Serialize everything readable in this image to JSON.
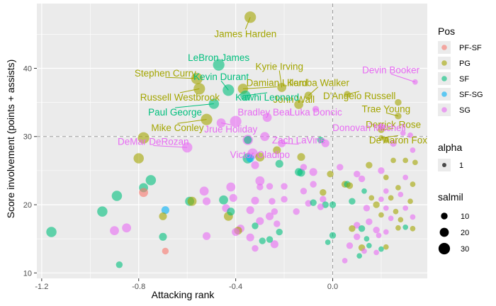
{
  "chart_data": {
    "type": "scatter",
    "xlabel": "Attacking rank",
    "ylabel": "Score involvement (points + assists)",
    "xlim": [
      -1.22,
      0.39
    ],
    "ylim": [
      9.2,
      49.5
    ],
    "x_ticks": [
      -1.2,
      -0.8,
      -0.4,
      0.0
    ],
    "x_tick_labels": [
      "-1.2",
      "-0.8",
      "-0.4",
      "0.0"
    ],
    "y_ticks": [
      10,
      20,
      30,
      40
    ],
    "y_tick_labels": [
      "10",
      "20",
      "30",
      "40"
    ],
    "grid": true,
    "reference_lines": [
      {
        "axis": "x",
        "value": 0,
        "style": "dashed"
      },
      {
        "axis": "y",
        "value": 30,
        "style": "dashed"
      }
    ],
    "colors": {
      "PF-SF": "#F8766D",
      "PG": "#A3A500",
      "SF": "#00BF7D",
      "SF-SG": "#00B0F6",
      "SG": "#E76BF3",
      "background": "#EBEBEB",
      "grid": "#FFFFFF"
    },
    "legend": {
      "placement": "right",
      "pos_title": "Pos",
      "pos_items": [
        "PF-SF",
        "PG",
        "SF",
        "SF-SG",
        "SG"
      ],
      "alpha_title": "alpha",
      "alpha_items": [
        "1"
      ],
      "salmil_title": "salmil",
      "salmil_items": [
        10,
        20,
        30
      ]
    },
    "labeled_points": [
      {
        "name": "James Harden",
        "pos": "PG",
        "x": -0.34,
        "y": 47.5,
        "s": 30,
        "lx": -0.36,
        "ly": 45.1
      },
      {
        "name": "LeBron James",
        "pos": "SF",
        "x": -0.47,
        "y": 40.5,
        "s": 30,
        "lx": -0.47,
        "ly": 41.6
      },
      {
        "name": "Stephen Curry",
        "pos": "PG",
        "x": -0.56,
        "y": 38.5,
        "s": 30,
        "lx": -0.69,
        "ly": 39.3
      },
      {
        "name": "Kevin Durant",
        "pos": "SF",
        "x": -0.43,
        "y": 36.8,
        "s": 30,
        "lx": -0.46,
        "ly": 38.8
      },
      {
        "name": "Kyrie Irving",
        "pos": "PG",
        "x": -0.21,
        "y": 37.2,
        "s": 20,
        "lx": -0.22,
        "ly": 40.3
      },
      {
        "name": "Damian Lillard",
        "pos": "PG",
        "x": -0.37,
        "y": 37.0,
        "s": 25,
        "lx": -0.23,
        "ly": 37.9
      },
      {
        "name": "Kemba Walker",
        "pos": "PG",
        "x": -0.1,
        "y": 36.0,
        "s": 15,
        "lx": -0.06,
        "ly": 37.9
      },
      {
        "name": "John Wall",
        "pos": "PG",
        "x": -0.14,
        "y": 34.7,
        "s": 20,
        "lx": -0.16,
        "ly": 35.5
      },
      {
        "name": "Devin Booker",
        "pos": "SG",
        "x": 0.34,
        "y": 38.0,
        "s": 5,
        "lx": 0.24,
        "ly": 39.8
      },
      {
        "name": "D'Angelo Russell",
        "pos": "PG",
        "x": 0.06,
        "y": 36.2,
        "s": 10,
        "lx": 0.11,
        "ly": 36.0
      },
      {
        "name": "Russell Westbrook",
        "pos": "PG",
        "x": -0.55,
        "y": 37.0,
        "s": 30,
        "lx": -0.63,
        "ly": 35.8
      },
      {
        "name": "Kawhi Leonard",
        "pos": "SF",
        "x": -0.36,
        "y": 36.0,
        "s": 25,
        "lx": -0.27,
        "ly": 35.8
      },
      {
        "name": "Paul George",
        "pos": "SF",
        "x": -0.49,
        "y": 34.8,
        "s": 25,
        "lx": -0.65,
        "ly": 33.6
      },
      {
        "name": "Bradley Beal",
        "pos": "SG",
        "x": -0.27,
        "y": 32.8,
        "s": 20,
        "lx": -0.28,
        "ly": 33.6
      },
      {
        "name": "Luka Doncic",
        "pos": "SG",
        "x": -0.07,
        "y": 34.0,
        "s": 10,
        "lx": -0.07,
        "ly": 33.6
      },
      {
        "name": "Trae Young",
        "pos": "PG",
        "x": 0.27,
        "y": 33.0,
        "s": 10,
        "lx": 0.22,
        "ly": 34.1
      },
      {
        "name": "Mike Conley",
        "pos": "PG",
        "x": -0.52,
        "y": 32.5,
        "s": 30,
        "lx": -0.64,
        "ly": 31.3
      },
      {
        "name": "Jrue Holiday",
        "pos": "SG",
        "x": -0.46,
        "y": 32.0,
        "s": 20,
        "lx": -0.42,
        "ly": 31.1
      },
      {
        "name": "Derrick Rose",
        "pos": "PG",
        "x": 0.2,
        "y": 31.0,
        "s": 10,
        "lx": 0.25,
        "ly": 31.8
      },
      {
        "name": "Donovan Mitchell",
        "pos": "SG",
        "x": 0.2,
        "y": 31.5,
        "s": 10,
        "lx": 0.15,
        "ly": 31.3
      },
      {
        "name": "Zach LaVine",
        "pos": "SG",
        "x": -0.21,
        "y": 29.0,
        "s": 15,
        "lx": -0.14,
        "ly": 29.5
      },
      {
        "name": "DeMar DeRozan",
        "pos": "SG",
        "x": -0.6,
        "y": 28.4,
        "s": 25,
        "lx": -0.74,
        "ly": 29.3
      },
      {
        "name": "De'Aaron Fox",
        "pos": "PG",
        "x": 0.2,
        "y": 29.8,
        "s": 5,
        "lx": 0.27,
        "ly": 29.5
      },
      {
        "name": "Victor Oladipo",
        "pos": "SG",
        "x": -0.33,
        "y": 27.5,
        "s": 25,
        "lx": -0.3,
        "ly": 27.4
      }
    ],
    "points": [
      {
        "pos": "PG",
        "x": -0.78,
        "y": 29.8,
        "s": 30
      },
      {
        "pos": "PG",
        "x": -0.8,
        "y": 26.8,
        "s": 25
      },
      {
        "pos": "SG",
        "x": -0.4,
        "y": 32.2,
        "s": 30
      },
      {
        "pos": "SG",
        "x": -0.35,
        "y": 29.5,
        "s": 25
      },
      {
        "pos": "SG",
        "x": -0.28,
        "y": 30.0,
        "s": 20
      },
      {
        "pos": "SF",
        "x": -0.35,
        "y": 29.5,
        "s": 15
      },
      {
        "pos": "SF",
        "x": -0.35,
        "y": 26.8,
        "s": 25
      },
      {
        "pos": "SF-SG",
        "x": -0.34,
        "y": 26.8,
        "s": 15
      },
      {
        "pos": "PG",
        "x": -0.3,
        "y": 27.0,
        "s": 20
      },
      {
        "pos": "PG",
        "x": -0.23,
        "y": 28.0,
        "s": 15
      },
      {
        "pos": "PG",
        "x": -0.13,
        "y": 27.0,
        "s": 15
      },
      {
        "pos": "SG",
        "x": -0.32,
        "y": 25.8,
        "s": 15
      },
      {
        "pos": "SF",
        "x": -0.13,
        "y": 24.7,
        "s": 15
      },
      {
        "pos": "SG",
        "x": -0.12,
        "y": 25.5,
        "s": 10
      },
      {
        "pos": "SG",
        "x": -0.3,
        "y": 23.5,
        "s": 20
      },
      {
        "pos": "SG",
        "x": -0.08,
        "y": 24.8,
        "s": 15
      },
      {
        "pos": "SF",
        "x": -0.05,
        "y": 29.5,
        "s": 10
      },
      {
        "pos": "SG",
        "x": -0.03,
        "y": 29.0,
        "s": 15
      },
      {
        "pos": "SF",
        "x": -0.75,
        "y": 23.6,
        "s": 25
      },
      {
        "pos": "SF",
        "x": -0.78,
        "y": 22.5,
        "s": 20
      },
      {
        "pos": "SF",
        "x": -0.89,
        "y": 21.3,
        "s": 25
      },
      {
        "pos": "PF-SF",
        "x": -0.78,
        "y": 21.8,
        "s": 20
      },
      {
        "pos": "SF",
        "x": -0.95,
        "y": 19.0,
        "s": 25
      },
      {
        "pos": "SF",
        "x": -1.16,
        "y": 16.0,
        "s": 25
      },
      {
        "pos": "SG",
        "x": -0.9,
        "y": 16.2,
        "s": 20
      },
      {
        "pos": "SG",
        "x": -0.85,
        "y": 16.6,
        "s": 20
      },
      {
        "pos": "SF-SG",
        "x": -0.69,
        "y": 19.2,
        "s": 15
      },
      {
        "pos": "PG",
        "x": -0.7,
        "y": 18.3,
        "s": 15
      },
      {
        "pos": "SF",
        "x": -0.7,
        "y": 15.3,
        "s": 15
      },
      {
        "pos": "PF-SF",
        "x": -0.69,
        "y": 13.2,
        "s": 10
      },
      {
        "pos": "SF",
        "x": -0.88,
        "y": 11.2,
        "s": 10
      },
      {
        "pos": "SF",
        "x": -0.59,
        "y": 20.5,
        "s": 20
      },
      {
        "pos": "PG",
        "x": -0.58,
        "y": 20.5,
        "s": 20
      },
      {
        "pos": "SG",
        "x": -0.53,
        "y": 22.0,
        "s": 20
      },
      {
        "pos": "SG",
        "x": -0.52,
        "y": 20.5,
        "s": 15
      },
      {
        "pos": "SF",
        "x": -0.45,
        "y": 20.7,
        "s": 20
      },
      {
        "pos": "SG",
        "x": -0.42,
        "y": 22.6,
        "s": 20
      },
      {
        "pos": "SG",
        "x": -0.41,
        "y": 21.0,
        "s": 15
      },
      {
        "pos": "SG",
        "x": -0.44,
        "y": 19.5,
        "s": 15
      },
      {
        "pos": "SF",
        "x": -0.42,
        "y": 19.0,
        "s": 15
      },
      {
        "pos": "PG",
        "x": -0.43,
        "y": 18.3,
        "s": 20
      },
      {
        "pos": "SG",
        "x": -0.38,
        "y": 16.5,
        "s": 15
      },
      {
        "pos": "PG",
        "x": -0.39,
        "y": 16.2,
        "s": 15
      },
      {
        "pos": "SG",
        "x": -0.4,
        "y": 16.0,
        "s": 15
      },
      {
        "pos": "SG",
        "x": -0.52,
        "y": 15.4,
        "s": 15
      },
      {
        "pos": "SG",
        "x": -0.32,
        "y": 20.6,
        "s": 15
      },
      {
        "pos": "SG",
        "x": -0.34,
        "y": 19.2,
        "s": 15
      },
      {
        "pos": "SG",
        "x": -0.3,
        "y": 17.6,
        "s": 15
      },
      {
        "pos": "SF",
        "x": -0.32,
        "y": 16.9,
        "s": 10
      },
      {
        "pos": "SG",
        "x": -0.34,
        "y": 15.2,
        "s": 15
      },
      {
        "pos": "SG",
        "x": -0.32,
        "y": 13.6,
        "s": 10
      },
      {
        "pos": "SG",
        "x": -0.25,
        "y": 20.5,
        "s": 10
      },
      {
        "pos": "SG",
        "x": -0.24,
        "y": 19.0,
        "s": 10
      },
      {
        "pos": "SG",
        "x": -0.26,
        "y": 18.3,
        "s": 15
      },
      {
        "pos": "SG",
        "x": -0.23,
        "y": 17.2,
        "s": 10
      },
      {
        "pos": "SF",
        "x": -0.22,
        "y": 16.0,
        "s": 10
      },
      {
        "pos": "SG",
        "x": -0.24,
        "y": 14.2,
        "s": 15
      },
      {
        "pos": "SF",
        "x": -0.26,
        "y": 14.9,
        "s": 10
      },
      {
        "pos": "SG",
        "x": -0.26,
        "y": 22.7,
        "s": 10
      },
      {
        "pos": "SG",
        "x": -0.3,
        "y": 22.6,
        "s": 10
      },
      {
        "pos": "SG",
        "x": -0.2,
        "y": 22.7,
        "s": 10
      },
      {
        "pos": "SG",
        "x": -0.2,
        "y": 20.8,
        "s": 10
      },
      {
        "pos": "SG",
        "x": -0.12,
        "y": 22.0,
        "s": 10
      },
      {
        "pos": "SG",
        "x": -0.1,
        "y": 20.2,
        "s": 10
      },
      {
        "pos": "SG",
        "x": -0.15,
        "y": 19.0,
        "s": 10
      },
      {
        "pos": "PG",
        "x": -0.04,
        "y": 21.8,
        "s": 10
      },
      {
        "pos": "SG",
        "x": -0.04,
        "y": 20.8,
        "s": 10
      },
      {
        "pos": "SF",
        "x": -0.03,
        "y": 20.0,
        "s": 10
      },
      {
        "pos": "SG",
        "x": -0.05,
        "y": 19.7,
        "s": 10
      },
      {
        "pos": "SF",
        "x": 0.0,
        "y": 20.0,
        "s": 10
      },
      {
        "pos": "SF",
        "x": -0.08,
        "y": 20.3,
        "s": 10
      },
      {
        "pos": "PG",
        "x": -0.01,
        "y": 24.5,
        "s": 10
      },
      {
        "pos": "PG",
        "x": 0.05,
        "y": 23.0,
        "s": 10
      },
      {
        "pos": "SG",
        "x": 0.03,
        "y": 25.5,
        "s": 10
      },
      {
        "pos": "SF",
        "x": 0.06,
        "y": 23.0,
        "s": 10
      },
      {
        "pos": "PG",
        "x": 0.07,
        "y": 22.8,
        "s": 10
      },
      {
        "pos": "SG",
        "x": 0.1,
        "y": 24.5,
        "s": 10
      },
      {
        "pos": "SG",
        "x": 0.12,
        "y": 23.8,
        "s": 10
      },
      {
        "pos": "PG",
        "x": 0.15,
        "y": 25.8,
        "s": 10
      },
      {
        "pos": "SF",
        "x": 0.13,
        "y": 22.0,
        "s": 5
      },
      {
        "pos": "PG",
        "x": 0.16,
        "y": 21.0,
        "s": 5
      },
      {
        "pos": "SF",
        "x": 0.08,
        "y": 20.5,
        "s": 10
      },
      {
        "pos": "SG",
        "x": 0.14,
        "y": 19.5,
        "s": 10
      },
      {
        "pos": "PG",
        "x": 0.18,
        "y": 20.0,
        "s": 10
      },
      {
        "pos": "SG",
        "x": 0.2,
        "y": 25.0,
        "s": 10
      },
      {
        "pos": "PG",
        "x": 0.22,
        "y": 24.0,
        "s": 5
      },
      {
        "pos": "PG",
        "x": 0.25,
        "y": 26.5,
        "s": 5
      },
      {
        "pos": "PG",
        "x": 0.3,
        "y": 26.5,
        "s": 5
      },
      {
        "pos": "SG",
        "x": 0.33,
        "y": 28.0,
        "s": 5
      },
      {
        "pos": "PG",
        "x": 0.34,
        "y": 26.2,
        "s": 5
      },
      {
        "pos": "SG",
        "x": 0.22,
        "y": 22.0,
        "s": 5
      },
      {
        "pos": "PG",
        "x": 0.27,
        "y": 22.5,
        "s": 5
      },
      {
        "pos": "SG",
        "x": 0.3,
        "y": 24.0,
        "s": 5
      },
      {
        "pos": "PG",
        "x": 0.33,
        "y": 23.0,
        "s": 5
      },
      {
        "pos": "SG",
        "x": 0.2,
        "y": 20.8,
        "s": 5
      },
      {
        "pos": "PG",
        "x": 0.24,
        "y": 21.0,
        "s": 5
      },
      {
        "pos": "SG",
        "x": 0.28,
        "y": 21.5,
        "s": 5
      },
      {
        "pos": "PG",
        "x": 0.32,
        "y": 20.5,
        "s": 5
      },
      {
        "pos": "SG",
        "x": 0.22,
        "y": 19.5,
        "s": 5
      },
      {
        "pos": "PG",
        "x": 0.26,
        "y": 19.0,
        "s": 5
      },
      {
        "pos": "SG",
        "x": 0.3,
        "y": 19.5,
        "s": 5
      },
      {
        "pos": "PG",
        "x": 0.2,
        "y": 18.5,
        "s": 5
      },
      {
        "pos": "SG",
        "x": 0.24,
        "y": 18.0,
        "s": 5
      },
      {
        "pos": "PG",
        "x": 0.28,
        "y": 17.8,
        "s": 5
      },
      {
        "pos": "SG",
        "x": 0.33,
        "y": 18.2,
        "s": 5
      },
      {
        "pos": "SG",
        "x": 0.15,
        "y": 17.5,
        "s": 10
      },
      {
        "pos": "SG",
        "x": 0.1,
        "y": 17.0,
        "s": 10
      },
      {
        "pos": "PG",
        "x": 0.08,
        "y": 16.5,
        "s": 10
      },
      {
        "pos": "SF",
        "x": 0.12,
        "y": 16.5,
        "s": 10
      },
      {
        "pos": "SG",
        "x": 0.18,
        "y": 16.3,
        "s": 10
      },
      {
        "pos": "SG",
        "x": 0.22,
        "y": 16.0,
        "s": 5
      },
      {
        "pos": "PG",
        "x": 0.27,
        "y": 16.6,
        "s": 5
      },
      {
        "pos": "SF",
        "x": 0.3,
        "y": 16.7,
        "s": 5
      },
      {
        "pos": "PG",
        "x": 0.33,
        "y": 16.5,
        "s": 5
      },
      {
        "pos": "SG",
        "x": 0.1,
        "y": 15.3,
        "s": 10
      },
      {
        "pos": "SF",
        "x": 0.14,
        "y": 15.0,
        "s": 5
      },
      {
        "pos": "SG",
        "x": 0.19,
        "y": 15.5,
        "s": 5
      },
      {
        "pos": "SF",
        "x": 0.0,
        "y": 15.5,
        "s": 10
      },
      {
        "pos": "SF",
        "x": -0.02,
        "y": 14.5,
        "s": 5
      },
      {
        "pos": "SG",
        "x": 0.07,
        "y": 14.0,
        "s": 10
      },
      {
        "pos": "PG",
        "x": 0.12,
        "y": 13.7,
        "s": 10
      },
      {
        "pos": "SF",
        "x": 0.15,
        "y": 14.0,
        "s": 5
      },
      {
        "pos": "SF",
        "x": 0.2,
        "y": 13.5,
        "s": 5
      },
      {
        "pos": "SG",
        "x": 0.18,
        "y": 13.0,
        "s": 5
      },
      {
        "pos": "SF",
        "x": 0.11,
        "y": 12.5,
        "s": 5
      },
      {
        "pos": "PG",
        "x": 0.22,
        "y": 13.8,
        "s": 5
      },
      {
        "pos": "SG",
        "x": 0.05,
        "y": 11.8,
        "s": 5
      },
      {
        "pos": "SG",
        "x": 0.13,
        "y": 13.2,
        "s": 5
      },
      {
        "pos": "SF",
        "x": -0.29,
        "y": 14.7,
        "s": 10
      },
      {
        "pos": "SF",
        "x": -0.22,
        "y": 26.0,
        "s": 15
      },
      {
        "pos": "SF",
        "x": -0.14,
        "y": 24.8,
        "s": 15
      },
      {
        "pos": "SG",
        "x": -0.08,
        "y": 23.0,
        "s": 10
      },
      {
        "pos": "SG",
        "x": 0.25,
        "y": 29.0,
        "s": 10
      },
      {
        "pos": "SG",
        "x": 0.32,
        "y": 30.2,
        "s": 5
      },
      {
        "pos": "SG",
        "x": 0.29,
        "y": 30.5,
        "s": 5
      },
      {
        "pos": "PG",
        "x": 0.27,
        "y": 35.0,
        "s": 10
      },
      {
        "pos": "PG",
        "x": 0.22,
        "y": 29.5,
        "s": 10
      }
    ]
  }
}
